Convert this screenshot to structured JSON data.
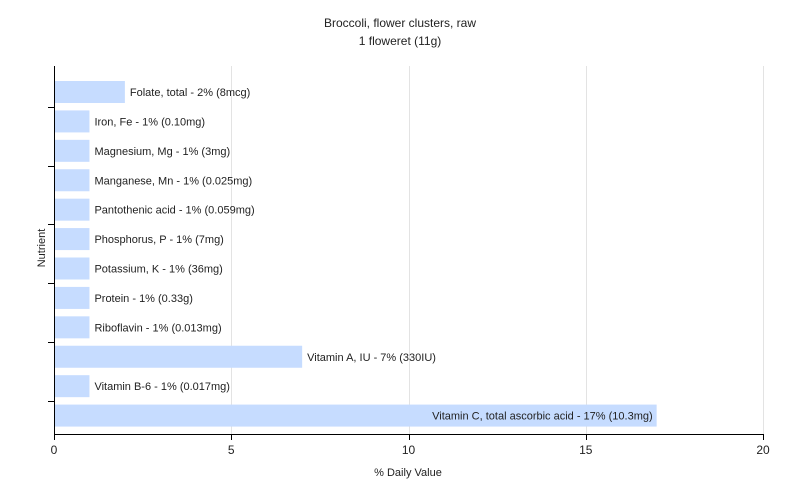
{
  "chart_data": {
    "type": "bar",
    "orientation": "horizontal",
    "title": "Broccoli, flower clusters, raw",
    "subtitle": "1 floweret (11g)",
    "xlabel": "% Daily Value",
    "ylabel": "Nutrient",
    "xlim": [
      0,
      20
    ],
    "xticks": [
      0,
      5,
      10,
      15,
      20
    ],
    "grid": true,
    "bar_color": "#c6dcff",
    "categories": [
      "Folate, total",
      "Iron, Fe",
      "Magnesium, Mg",
      "Manganese, Mn",
      "Pantothenic acid",
      "Phosphorus, P",
      "Potassium, K",
      "Protein",
      "Riboflavin",
      "Vitamin A, IU",
      "Vitamin B-6",
      "Vitamin C, total ascorbic acid"
    ],
    "values": [
      2,
      1,
      1,
      1,
      1,
      1,
      1,
      1,
      1,
      7,
      1,
      17
    ],
    "labels": [
      "Folate, total - 2% (8mcg)",
      "Iron, Fe - 1% (0.10mg)",
      "Magnesium, Mg - 1% (3mg)",
      "Manganese, Mn - 1% (0.025mg)",
      "Pantothenic acid - 1% (0.059mg)",
      "Phosphorus, P - 1% (7mg)",
      "Potassium, K - 1% (36mg)",
      "Protein - 1% (0.33g)",
      "Riboflavin - 1% (0.013mg)",
      "Vitamin A, IU - 7% (330IU)",
      "Vitamin B-6 - 1% (0.017mg)",
      "Vitamin C, total ascorbic acid - 17% (10.3mg)"
    ]
  }
}
